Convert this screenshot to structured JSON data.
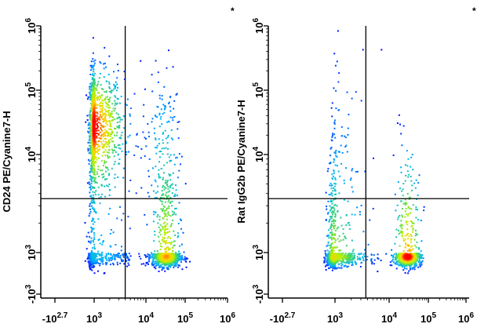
{
  "chart_data": [
    {
      "type": "scatter",
      "subtype": "flow-cytometry-density-dot-plot",
      "ylabel": "CD24 PE/Cyanine7-H",
      "xlabel": "",
      "corner_mark": "*",
      "x_ticks": [
        {
          "base": "-10",
          "exp": "2.7",
          "u": -2.7
        },
        {
          "base": "10",
          "exp": "3",
          "u": 3
        },
        {
          "base": "10",
          "exp": "4",
          "u": 4
        },
        {
          "base": "10",
          "exp": "5",
          "u": 5
        },
        {
          "base": "10",
          "exp": "6",
          "u": 6
        }
      ],
      "y_ticks": [
        {
          "base": "-10",
          "exp": "3",
          "u": -3
        },
        {
          "base": "10",
          "exp": "3",
          "u": 3
        },
        {
          "base": "10",
          "exp": "4",
          "u": 4
        },
        {
          "base": "10",
          "exp": "5",
          "u": 5
        },
        {
          "base": "10",
          "exp": "6",
          "u": 6
        }
      ],
      "scale": "biexponential (log10)",
      "quadrant_gate": {
        "x_log10": 3.6,
        "y_log10": 3.55
      },
      "populations_log10": [
        {
          "cx": 2.9,
          "cy": 4.45,
          "sx": 0.33,
          "sy": 0.42,
          "n": 1300
        },
        {
          "cx": 4.5,
          "cy": 2.5,
          "sx": 0.18,
          "sy": 0.7,
          "n": 900
        },
        {
          "cx": 4.4,
          "cy": 4.2,
          "sx": 0.25,
          "sy": 0.6,
          "n": 150
        },
        {
          "cx": 2.9,
          "cy": 2.6,
          "sx": 0.45,
          "sy": 0.8,
          "n": 450
        }
      ],
      "colormap": [
        "#0000ff",
        "#00b4ff",
        "#2fd07a",
        "#b4f000",
        "#ffd200",
        "#ff0000"
      ]
    },
    {
      "type": "scatter",
      "subtype": "flow-cytometry-density-dot-plot",
      "ylabel": "Rat IgG2b PE/Cyanine7-H",
      "xlabel": "",
      "corner_mark": "*",
      "x_ticks": [
        {
          "base": "-10",
          "exp": "2.7",
          "u": -2.7
        },
        {
          "base": "10",
          "exp": "3",
          "u": 3
        },
        {
          "base": "10",
          "exp": "4",
          "u": 4
        },
        {
          "base": "10",
          "exp": "5",
          "u": 5
        },
        {
          "base": "10",
          "exp": "6",
          "u": 6
        }
      ],
      "y_ticks": [
        {
          "base": "-10",
          "exp": "3",
          "u": -3
        },
        {
          "base": "10",
          "exp": "3",
          "u": 3
        },
        {
          "base": "10",
          "exp": "4",
          "u": 4
        },
        {
          "base": "10",
          "exp": "5",
          "u": 5
        },
        {
          "base": "10",
          "exp": "6",
          "u": 6
        }
      ],
      "scale": "biexponential (log10)",
      "quadrant_gate": {
        "x_log10": 3.57,
        "y_log10": 3.55
      },
      "populations_log10": [
        {
          "cx": 2.8,
          "cy": 2.5,
          "sx": 0.38,
          "sy": 0.7,
          "n": 950
        },
        {
          "cx": 4.45,
          "cy": 2.5,
          "sx": 0.17,
          "sy": 0.7,
          "n": 700
        },
        {
          "cx": 3.1,
          "cy": 4.6,
          "sx": 0.3,
          "sy": 0.6,
          "n": 45
        }
      ],
      "colormap": [
        "#0000ff",
        "#00b4ff",
        "#2fd07a",
        "#b4f000",
        "#ffd200",
        "#ff0000"
      ]
    }
  ]
}
